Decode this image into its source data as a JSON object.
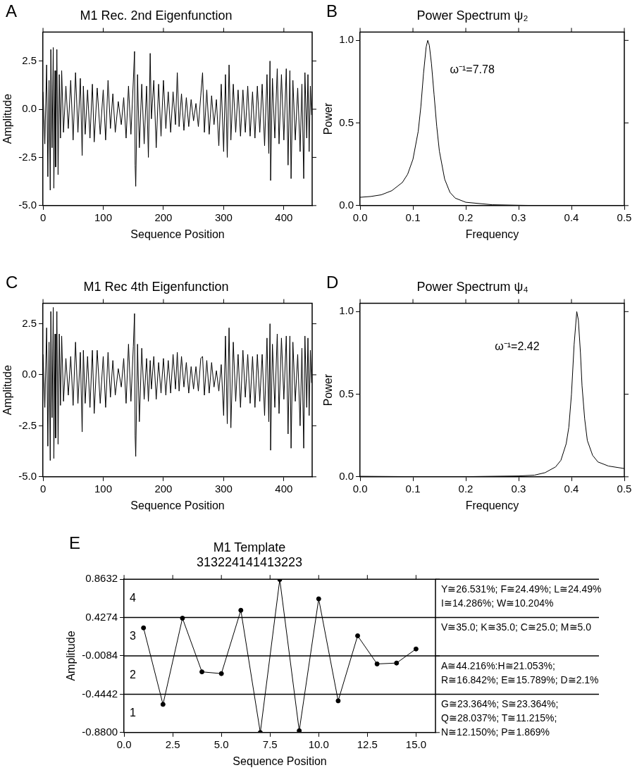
{
  "chart_data": [
    {
      "type": "line",
      "title": "M1 Rec. 2nd Eigenfunction",
      "xlabel": "Sequence Position",
      "ylabel": "Amplitude",
      "annotations": [
        "A"
      ],
      "marker": "none",
      "grid": false,
      "xlim": [
        0,
        447
      ],
      "xticks": [
        0,
        100,
        200,
        300,
        400
      ],
      "ylim": [
        -5,
        4
      ],
      "yticks": [
        {
          "value": -5,
          "label": "-5.0"
        },
        -2.5,
        {
          "value": 0,
          "label": "0.0"
        },
        2.5
      ],
      "series": [
        {
          "color": "#000000",
          "x": [
            0,
            3,
            6,
            8,
            10,
            12,
            13,
            15,
            17,
            18,
            20,
            21,
            23,
            25,
            27,
            29,
            31,
            34,
            38,
            42,
            46,
            50,
            54,
            58,
            62,
            65,
            67,
            70,
            74,
            78,
            82,
            85,
            90,
            95,
            100,
            104,
            108,
            112,
            116,
            120,
            125,
            130,
            134,
            138,
            142,
            146,
            150,
            152,
            153,
            154,
            157,
            160,
            164,
            168,
            172,
            175,
            178,
            180,
            184,
            188,
            192,
            196,
            200,
            204,
            208,
            212,
            216,
            220,
            223,
            226,
            230,
            234,
            238,
            242,
            246,
            250,
            254,
            258,
            262,
            265,
            268,
            272,
            276,
            280,
            284,
            288,
            292,
            296,
            300,
            303,
            306,
            309,
            312,
            316,
            320,
            324,
            328,
            332,
            336,
            340,
            344,
            348,
            352,
            356,
            360,
            364,
            368,
            372,
            375,
            377,
            378,
            381,
            385,
            389,
            392,
            396,
            400,
            404,
            407,
            410,
            412,
            415,
            419,
            423,
            427,
            430,
            433,
            435,
            438,
            440,
            442,
            444,
            446
          ],
          "values": [
            0.9,
            -1.8,
            2.3,
            -3.5,
            1.5,
            -4.2,
            3.1,
            -2.0,
            3.2,
            -4.1,
            2.0,
            -3.0,
            3.1,
            -3.4,
            1.8,
            -1.5,
            2.0,
            -1.2,
            1.2,
            -1.0,
            1.5,
            -1.6,
            1.9,
            -1.2,
            1.6,
            -2.4,
            1.2,
            -1.3,
            1.0,
            -1.5,
            1.3,
            -1.7,
            1.1,
            -1.3,
            1.0,
            -1.6,
            1.5,
            -1.0,
            0.8,
            -1.2,
            0.4,
            -0.8,
            0.6,
            -1.5,
            1.2,
            -1.3,
            1.5,
            3.0,
            -2.9,
            -4.0,
            1.8,
            -2.0,
            1.3,
            -1.8,
            1.2,
            -2.5,
            2.9,
            -0.5,
            1.5,
            -2.0,
            1.3,
            -1.4,
            1.5,
            -1.0,
            0.9,
            -1.2,
            0.9,
            -0.8,
            1.9,
            -0.9,
            0.8,
            -1.1,
            0.6,
            -0.9,
            0.5,
            -0.6,
            0.3,
            -0.9,
            0.7,
            1.9,
            -1.2,
            1.0,
            -1.3,
            0.7,
            -0.8,
            0.5,
            -1.9,
            1.3,
            -2.2,
            1.8,
            -2.5,
            2.3,
            -1.6,
            1.3,
            -1.2,
            1.0,
            -1.4,
            1.0,
            -1.2,
            1.2,
            -1.4,
            0.9,
            -1.5,
            1.2,
            -1.2,
            1.3,
            -1.9,
            1.8,
            -2.3,
            2.5,
            -3.7,
            1.6,
            -1.5,
            2.1,
            -1.8,
            1.8,
            -1.6,
            2.1,
            -2.9,
            2.0,
            -3.6,
            1.5,
            -1.6,
            1.1,
            -2.2,
            1.3,
            -3.6,
            1.9,
            -1.5,
            1.8,
            -2.2,
            1.2,
            -0.3
          ]
        }
      ]
    },
    {
      "type": "line",
      "title": "Power Spectrum ψ₂",
      "xlabel": "Frequency",
      "ylabel": "Power",
      "annotations": [
        "B",
        "ω⁻¹=7.78"
      ],
      "marker": "none",
      "grid": false,
      "xlim": [
        0,
        0.5
      ],
      "xticks": [
        {
          "value": 0,
          "label": "0.0"
        },
        0.1,
        0.2,
        0.3,
        0.4,
        0.5
      ],
      "ylim": [
        0,
        1.05
      ],
      "yticks": [
        {
          "value": 0,
          "label": "0.0"
        },
        0.5,
        {
          "value": 1,
          "label": "1.0"
        }
      ],
      "series": [
        {
          "color": "#000000",
          "x": [
            0,
            0.02,
            0.04,
            0.06,
            0.08,
            0.09,
            0.1,
            0.11,
            0.115,
            0.12,
            0.125,
            0.128,
            0.131,
            0.135,
            0.14,
            0.145,
            0.15,
            0.16,
            0.17,
            0.18,
            0.2,
            0.25,
            0.3,
            0.35
          ],
          "values": [
            0.05,
            0.055,
            0.065,
            0.09,
            0.14,
            0.19,
            0.28,
            0.45,
            0.6,
            0.8,
            0.96,
            1.0,
            0.97,
            0.86,
            0.67,
            0.48,
            0.33,
            0.16,
            0.08,
            0.045,
            0.02,
            0.005,
            0.002,
            0.0
          ]
        }
      ]
    },
    {
      "type": "line",
      "title": "M1 Rec 4th Eigenfunction",
      "xlabel": "Sequence Position",
      "ylabel": "Amplitude",
      "annotations": [
        "C"
      ],
      "marker": "none",
      "grid": false,
      "xlim": [
        0,
        447
      ],
      "xticks": [
        0,
        100,
        200,
        300,
        400
      ],
      "ylim": [
        -5,
        3.5
      ],
      "yticks": [
        {
          "value": -5,
          "label": "-5.0"
        },
        -2.5,
        {
          "value": 0,
          "label": "0.0"
        },
        2.5
      ],
      "series": [
        {
          "color": "#000000",
          "x": [
            0,
            3,
            6,
            8,
            10,
            12,
            13,
            15,
            17,
            18,
            20,
            21,
            23,
            25,
            27,
            29,
            31,
            34,
            38,
            42,
            46,
            50,
            54,
            58,
            62,
            65,
            67,
            70,
            74,
            78,
            82,
            85,
            90,
            95,
            100,
            104,
            108,
            112,
            116,
            120,
            125,
            130,
            134,
            138,
            142,
            146,
            150,
            152,
            153,
            154,
            157,
            160,
            164,
            168,
            172,
            175,
            178,
            180,
            184,
            188,
            192,
            196,
            200,
            204,
            208,
            212,
            216,
            220,
            223,
            226,
            230,
            234,
            238,
            242,
            246,
            250,
            254,
            258,
            262,
            265,
            268,
            272,
            276,
            280,
            284,
            288,
            292,
            296,
            300,
            303,
            306,
            309,
            312,
            316,
            320,
            324,
            328,
            332,
            336,
            340,
            344,
            348,
            352,
            356,
            360,
            364,
            368,
            372,
            375,
            377,
            378,
            381,
            385,
            389,
            392,
            396,
            400,
            404,
            407,
            410,
            412,
            415,
            419,
            423,
            427,
            430,
            433,
            435,
            438,
            440,
            442,
            444,
            446
          ],
          "values": [
            1.0,
            -1.6,
            2.3,
            -3.5,
            1.6,
            -4.2,
            3.1,
            -2.1,
            3.3,
            -4.1,
            2.0,
            -3.1,
            3.1,
            -3.4,
            2.0,
            -1.5,
            1.9,
            -1.3,
            0.8,
            -1.0,
            0.9,
            -1.5,
            1.6,
            -1.4,
            1.1,
            -2.8,
            1.2,
            -1.4,
            0.9,
            -1.6,
            1.2,
            -1.9,
            1.2,
            -1.4,
            0.9,
            -1.6,
            1.1,
            -1.1,
            0.7,
            -1.0,
            0.3,
            -0.6,
            0.8,
            -1.4,
            1.5,
            -1.3,
            1.4,
            3.0,
            -3.0,
            -4.0,
            1.5,
            -2.3,
            1.3,
            -1.2,
            0.8,
            -1.3,
            0.7,
            -0.7,
            0.9,
            -1.2,
            0.6,
            -0.9,
            0.8,
            -1.0,
            0.7,
            -0.9,
            1.0,
            -0.7,
            1.1,
            -0.8,
            0.9,
            -0.6,
            0.6,
            -0.9,
            0.4,
            -0.7,
            0.4,
            -0.8,
            0.8,
            0.9,
            -1.0,
            0.7,
            -0.9,
            0.6,
            -0.6,
            0.2,
            -0.8,
            0.5,
            -2.0,
            1.9,
            -2.4,
            2.3,
            -2.6,
            1.6,
            -1.3,
            1.0,
            -1.6,
            1.2,
            -1.1,
            1.0,
            -1.4,
            0.9,
            -1.6,
            1.0,
            -1.3,
            1.0,
            -2.0,
            1.8,
            -2.3,
            2.5,
            -3.7,
            1.5,
            -1.6,
            2.0,
            -1.9,
            1.8,
            -1.2,
            1.9,
            -2.9,
            1.9,
            -3.6,
            1.6,
            -1.3,
            1.0,
            -2.5,
            1.3,
            -3.6,
            1.9,
            -1.6,
            1.8,
            -2.0,
            1.2,
            -0.4
          ]
        }
      ]
    },
    {
      "type": "line",
      "title": "Power Spectrum ψ₄",
      "xlabel": "Frequency",
      "ylabel": "Power",
      "annotations": [
        "D",
        "ω⁻¹=2.42"
      ],
      "marker": "none",
      "grid": false,
      "xlim": [
        0,
        0.5
      ],
      "xticks": [
        {
          "value": 0,
          "label": "0.0"
        },
        0.1,
        0.2,
        0.3,
        0.4,
        0.5
      ],
      "ylim": [
        0,
        1.05
      ],
      "yticks": [
        {
          "value": 0,
          "label": "0.0"
        },
        0.5,
        {
          "value": 1,
          "label": "1.0"
        }
      ],
      "series": [
        {
          "color": "#000000",
          "x": [
            0,
            0.1,
            0.2,
            0.3,
            0.33,
            0.35,
            0.37,
            0.38,
            0.39,
            0.395,
            0.4,
            0.405,
            0.41,
            0.413,
            0.417,
            0.42,
            0.425,
            0.43,
            0.44,
            0.45,
            0.47,
            0.5
          ],
          "values": [
            0.003,
            0.001,
            0.001,
            0.005,
            0.01,
            0.025,
            0.06,
            0.1,
            0.2,
            0.3,
            0.5,
            0.8,
            1.0,
            0.95,
            0.75,
            0.55,
            0.35,
            0.22,
            0.13,
            0.09,
            0.065,
            0.05
          ]
        }
      ]
    },
    {
      "type": "line",
      "title": "M1 Template",
      "subtitle": "313224141413223",
      "xlabel": "Sequence Position",
      "ylabel": "Amplitude",
      "marker": "circle",
      "grid": false,
      "annotations": [
        "E",
        "4",
        "3",
        "2",
        "1",
        "Y≅26.531%; F≅24.49%; L≅24.49%\nI≅14.286%; W≅10.204%",
        "V≅35.0; K≅35.0; C≅25.0; M≅5.0",
        "A≅44.216%:H≅21.053%;\nR≅16.842%; E≅15.789%; D≅2.1%",
        "G≅23.364%; S≅23.364%;\nQ≅28.037%; T≅11.215%;\nN≅12.150%; P≅1.869%"
      ],
      "xlim": [
        0,
        16
      ],
      "xticks": [
        {
          "value": 0,
          "label": "0.0"
        },
        2.5,
        {
          "value": 5,
          "label": "5.0"
        },
        7.5,
        {
          "value": 10,
          "label": "10.0"
        },
        12.5,
        {
          "value": 15,
          "label": "15.0"
        }
      ],
      "ylim": [
        -0.88,
        0.8632
      ],
      "yticks": [
        {
          "value": -0.88,
          "label": "-0.8800"
        },
        -0.4442,
        -0.0084,
        0.4274,
        0.8632
      ],
      "ref_lines": [
        {
          "axis": "y",
          "value": 0.4274
        },
        {
          "axis": "y",
          "value": -0.0084
        },
        {
          "axis": "y",
          "value": -0.4442
        }
      ],
      "series": [
        {
          "color": "#000000",
          "x": [
            1,
            2,
            3,
            4,
            5,
            6,
            7,
            8,
            9,
            10,
            11,
            12,
            13,
            14,
            15
          ],
          "values": [
            0.31,
            -0.56,
            0.42,
            -0.19,
            -0.21,
            0.51,
            -0.88,
            0.86,
            -0.86,
            0.64,
            -0.52,
            0.22,
            -0.1,
            -0.09,
            0.07
          ]
        }
      ]
    }
  ]
}
